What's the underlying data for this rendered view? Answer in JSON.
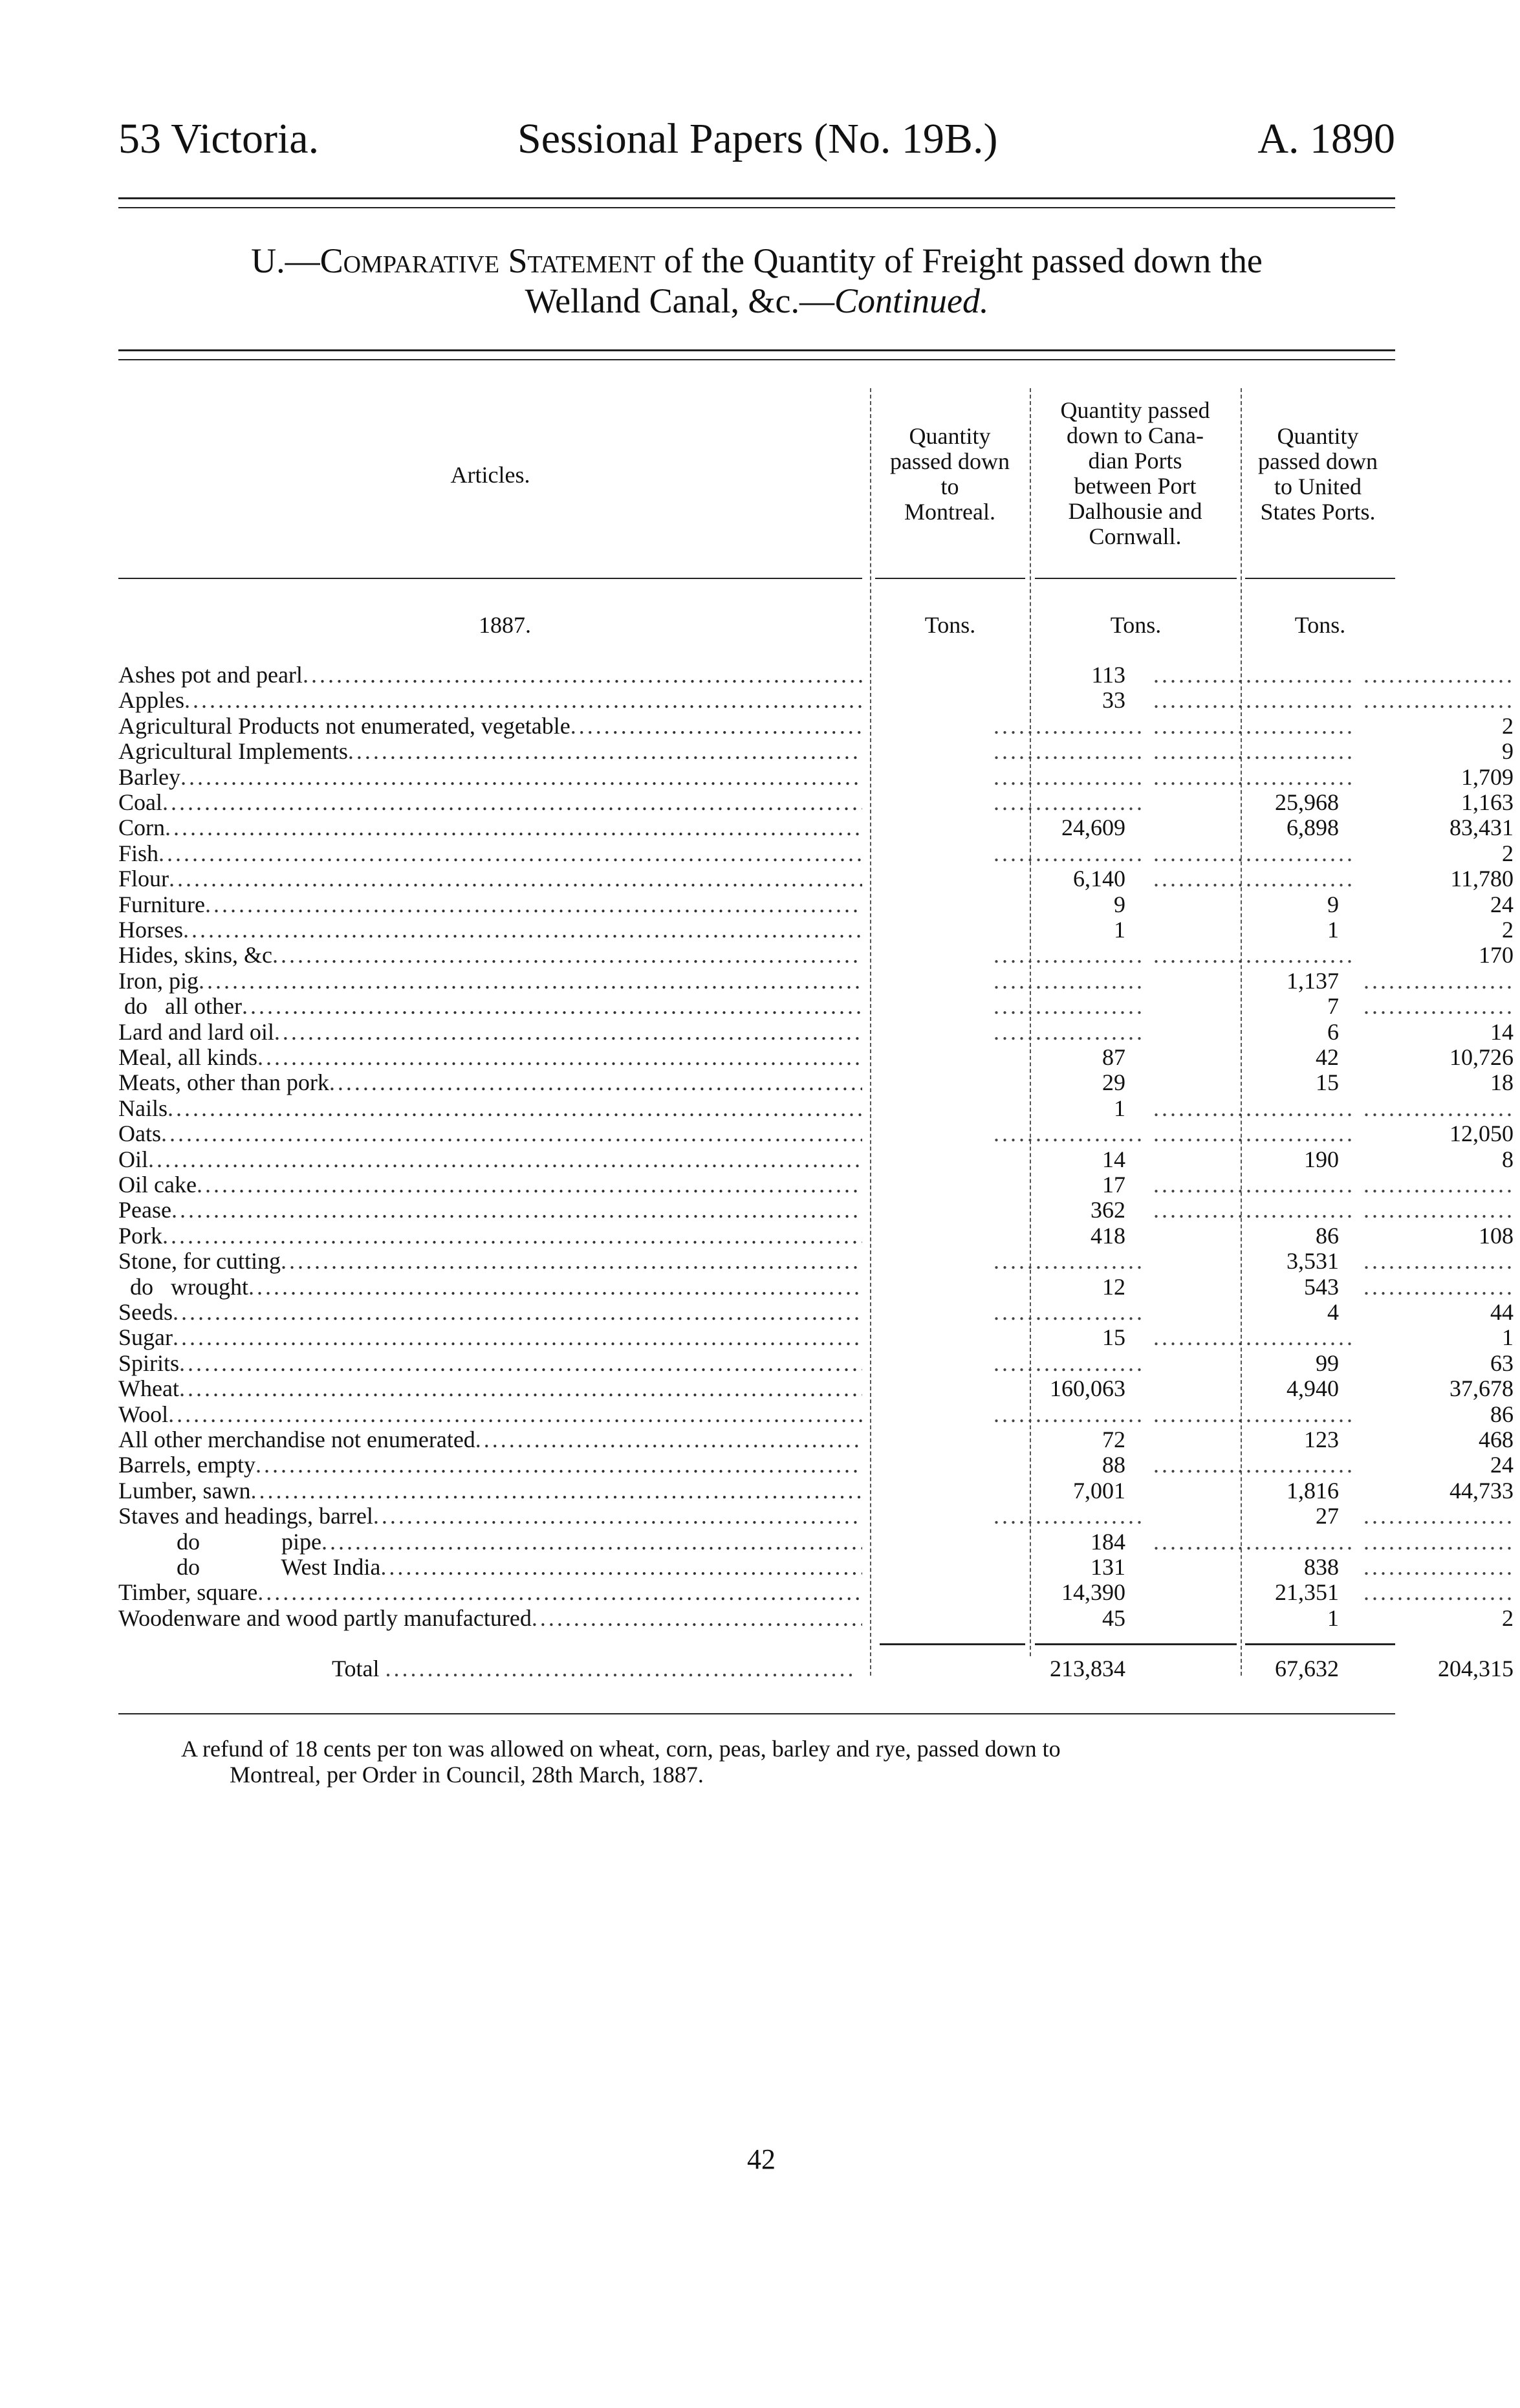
{
  "header": {
    "left": "53 Victoria.",
    "center": "Sessional Papers (No. 19B.)",
    "right": "A. 1890"
  },
  "title": {
    "prefix": "U.—",
    "caps": "Comparative Statement",
    "rest_line1": " of the Quantity of Freight passed down the",
    "line2_plain": "Welland Canal, &c.—",
    "line2_italic": "Continued."
  },
  "table": {
    "columns": [
      "Articles.",
      "Quantity passed down to Montreal.",
      "Quantity passed down to Canadian Ports between Port Dalhousie and Cornwall.",
      "Quantity passed down to United States Ports."
    ],
    "column_lines": [
      [
        "Articles."
      ],
      [
        "Quantity",
        "passed down",
        "to",
        "Montreal."
      ],
      [
        "Quantity passed",
        "down to Cana-",
        "dian Ports",
        "between Port",
        "Dalhousie and",
        "Cornwall."
      ],
      [
        "Quantity",
        "passed down",
        "to United",
        "States Ports."
      ]
    ],
    "year": "1887.",
    "units": [
      "Tons.",
      "Tons.",
      "Tons."
    ],
    "rows": [
      {
        "article": "Ashes pot and pearl",
        "values": [
          "113",
          "",
          ""
        ]
      },
      {
        "article": "Apples",
        "values": [
          "33",
          "",
          ""
        ]
      },
      {
        "article": "Agricultural Products not enumerated, vegetable",
        "values": [
          "",
          "",
          "2"
        ]
      },
      {
        "article": "Agricultural Implements",
        "values": [
          "",
          "",
          "9"
        ]
      },
      {
        "article": "Barley",
        "values": [
          "",
          "",
          "1,709"
        ]
      },
      {
        "article": "Coal",
        "values": [
          "",
          "25,968",
          "1,163"
        ]
      },
      {
        "article": "Corn",
        "values": [
          "24,609",
          "6,898",
          "83,431"
        ]
      },
      {
        "article": "Fish",
        "values": [
          "",
          "",
          "2"
        ]
      },
      {
        "article": "Flour",
        "values": [
          "6,140",
          "",
          "11,780"
        ]
      },
      {
        "article": "Furniture",
        "values": [
          "9",
          "9",
          "24"
        ]
      },
      {
        "article": "Horses",
        "values": [
          "1",
          "1",
          "2"
        ]
      },
      {
        "article": "Hides, skins, &c",
        "values": [
          "",
          "",
          "170"
        ]
      },
      {
        "article": "Iron, pig",
        "values": [
          "",
          "1,137",
          ""
        ]
      },
      {
        "article": " do   all other",
        "values": [
          "",
          "7",
          ""
        ]
      },
      {
        "article": "Lard and lard oil",
        "values": [
          "",
          "6",
          "14"
        ]
      },
      {
        "article": "Meal, all kinds",
        "values": [
          "87",
          "42",
          "10,726"
        ]
      },
      {
        "article": "Meats, other than pork",
        "values": [
          "29",
          "15",
          "18"
        ]
      },
      {
        "article": "Nails",
        "values": [
          "1",
          "",
          ""
        ]
      },
      {
        "article": "Oats",
        "values": [
          "",
          "",
          "12,050"
        ]
      },
      {
        "article": "Oil",
        "values": [
          "14",
          "190",
          "8"
        ]
      },
      {
        "article": "Oil cake",
        "values": [
          "17",
          "",
          ""
        ]
      },
      {
        "article": "Pease",
        "values": [
          "362",
          "",
          ""
        ]
      },
      {
        "article": "Pork",
        "values": [
          "418",
          "86",
          "108"
        ]
      },
      {
        "article": "Stone, for cutting",
        "values": [
          "",
          "3,531",
          ""
        ]
      },
      {
        "article": "  do   wrought",
        "values": [
          "12",
          "543",
          ""
        ]
      },
      {
        "article": "Seeds",
        "values": [
          "",
          "4",
          "44"
        ]
      },
      {
        "article": "Sugar",
        "values": [
          "15",
          "",
          "1"
        ]
      },
      {
        "article": "Spirits",
        "values": [
          "",
          "99",
          "63"
        ]
      },
      {
        "article": "Wheat",
        "values": [
          "160,063",
          "4,940",
          "37,678"
        ]
      },
      {
        "article": "Wool",
        "values": [
          "",
          "",
          "86"
        ]
      },
      {
        "article": "All other merchandise not enumerated",
        "values": [
          "72",
          "123",
          "468"
        ]
      },
      {
        "article": "Barrels, empty",
        "values": [
          "88",
          "",
          "24"
        ]
      },
      {
        "article": "Lumber, sawn",
        "values": [
          "7,001",
          "1,816",
          "44,733"
        ]
      },
      {
        "article": "Staves and headings, barrel",
        "values": [
          "",
          "27",
          ""
        ]
      },
      {
        "article": "          do              pipe",
        "values": [
          "184",
          "",
          ""
        ]
      },
      {
        "article": "          do              West India",
        "values": [
          "131",
          "838",
          ""
        ]
      },
      {
        "article": "Timber, square",
        "values": [
          "14,390",
          "21,351",
          ""
        ]
      },
      {
        "article": "Woodenware and wood partly manufactured",
        "values": [
          "45",
          "1",
          "2"
        ]
      }
    ],
    "total": {
      "label": "Total",
      "values": [
        "213,834",
        "67,632",
        "204,315"
      ]
    }
  },
  "note": {
    "line1": "A refund of 18 cents per ton was allowed on wheat, corn, peas, barley and rye, passed down to",
    "line2": "Montreal, per Order in Council, 28th March, 1887."
  },
  "page_number": "42"
}
